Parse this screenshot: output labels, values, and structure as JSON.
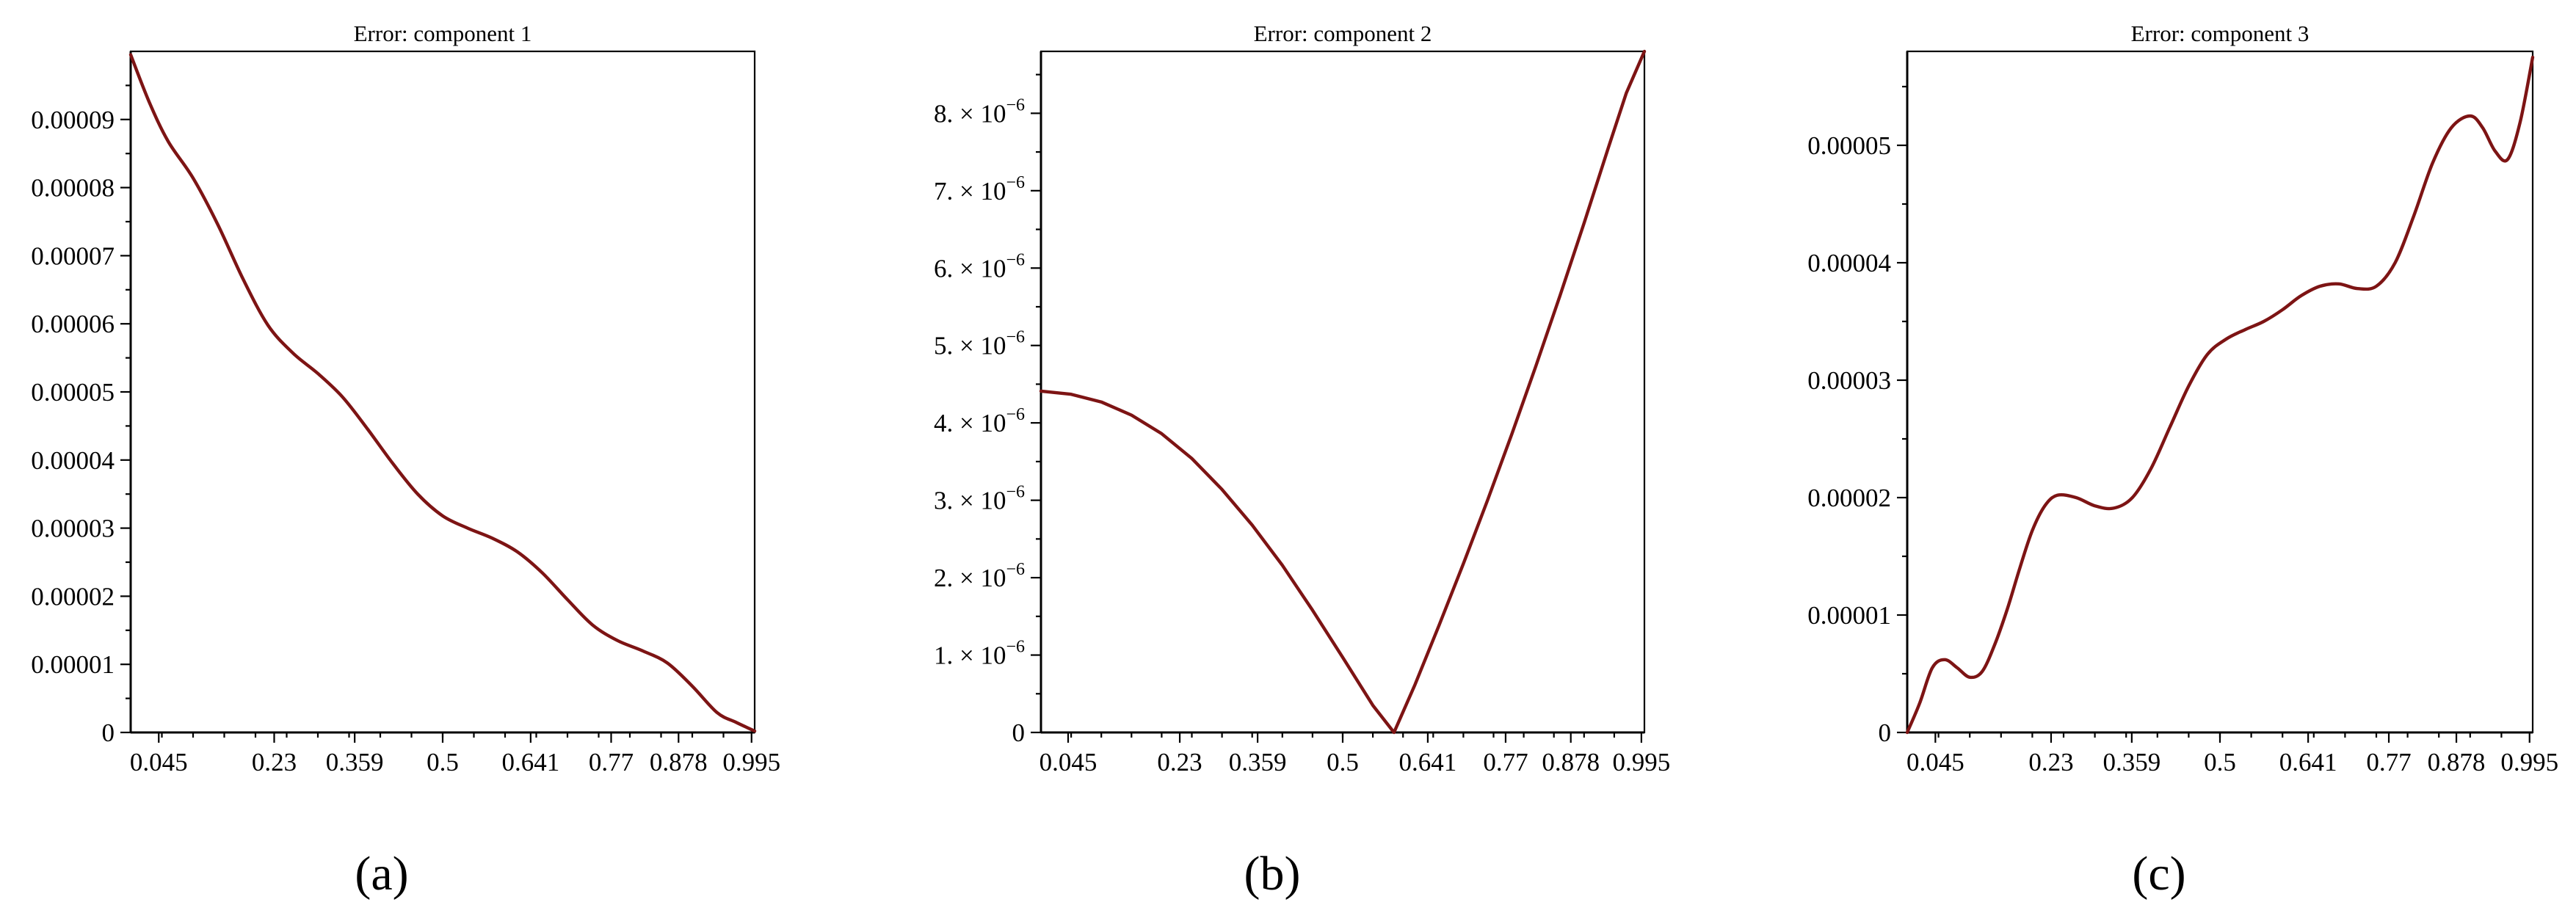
{
  "colors": {
    "curve": "#7d1414",
    "axis": "#000000"
  },
  "chart_data": [
    {
      "type": "line",
      "panel_label": "(a)",
      "title": "Error: component 1",
      "xlabel": "",
      "ylabel": "",
      "xlim": [
        0,
        1
      ],
      "ylim": [
        0,
        0.0001
      ],
      "grid": false,
      "x_ticks": [
        {
          "value": 0.045,
          "label": "0.045"
        },
        {
          "value": 0.23,
          "label": "0.23"
        },
        {
          "value": 0.359,
          "label": "0.359"
        },
        {
          "value": 0.5,
          "label": "0.5"
        },
        {
          "value": 0.641,
          "label": "0.641"
        },
        {
          "value": 0.77,
          "label": "0.77"
        },
        {
          "value": 0.878,
          "label": "0.878"
        },
        {
          "value": 0.995,
          "label": "0.995"
        }
      ],
      "y_ticks": [
        {
          "value": 0,
          "label": "0"
        },
        {
          "value": 1e-05,
          "label": "0.00001"
        },
        {
          "value": 2e-05,
          "label": "0.00002"
        },
        {
          "value": 3e-05,
          "label": "0.00003"
        },
        {
          "value": 4e-05,
          "label": "0.00004"
        },
        {
          "value": 5e-05,
          "label": "0.00005"
        },
        {
          "value": 6e-05,
          "label": "0.00006"
        },
        {
          "value": 7e-05,
          "label": "0.00007"
        },
        {
          "value": 8e-05,
          "label": "0.00008"
        },
        {
          "value": 9e-05,
          "label": "0.00009"
        }
      ],
      "series": [
        {
          "x": [
            0,
            0.03,
            0.06,
            0.1,
            0.14,
            0.18,
            0.22,
            0.26,
            0.3,
            0.34,
            0.38,
            0.42,
            0.46,
            0.5,
            0.54,
            0.58,
            0.62,
            0.66,
            0.7,
            0.74,
            0.78,
            0.82,
            0.86,
            0.9,
            0.94,
            0.97,
            1.0
          ],
          "y": [
            9.95e-05,
            9.25e-05,
            8.68e-05,
            8.14e-05,
            7.45e-05,
            6.66e-05,
            5.98e-05,
            5.57e-05,
            5.27e-05,
            4.92e-05,
            4.45e-05,
            3.95e-05,
            3.5e-05,
            3.18e-05,
            3e-05,
            2.85e-05,
            2.65e-05,
            2.34e-05,
            1.95e-05,
            1.58e-05,
            1.35e-05,
            1.2e-05,
            1.02e-05,
            6.8e-06,
            2.9e-06,
            1.5e-06,
            2e-07
          ]
        }
      ]
    },
    {
      "type": "line",
      "panel_label": "(b)",
      "title": "Error: component 2",
      "xlabel": "",
      "ylabel": "",
      "xlim": [
        0,
        1
      ],
      "ylim": [
        0,
        8.8e-06
      ],
      "grid": false,
      "x_ticks": [
        {
          "value": 0.045,
          "label": "0.045"
        },
        {
          "value": 0.23,
          "label": "0.23"
        },
        {
          "value": 0.359,
          "label": "0.359"
        },
        {
          "value": 0.5,
          "label": "0.5"
        },
        {
          "value": 0.641,
          "label": "0.641"
        },
        {
          "value": 0.77,
          "label": "0.77"
        },
        {
          "value": 0.878,
          "label": "0.878"
        },
        {
          "value": 0.995,
          "label": "0.995"
        }
      ],
      "y_ticks": [
        {
          "value": 0,
          "label": "0",
          "exp": ""
        },
        {
          "value": 1e-06,
          "label": "1. × 10",
          "exp": "−6"
        },
        {
          "value": 2e-06,
          "label": "2. × 10",
          "exp": "−6"
        },
        {
          "value": 3e-06,
          "label": "3. × 10",
          "exp": "−6"
        },
        {
          "value": 4e-06,
          "label": "4. × 10",
          "exp": "−6"
        },
        {
          "value": 5e-06,
          "label": "5. × 10",
          "exp": "−6"
        },
        {
          "value": 6e-06,
          "label": "6. × 10",
          "exp": "−6"
        },
        {
          "value": 7e-06,
          "label": "7. × 10",
          "exp": "−6"
        },
        {
          "value": 8e-06,
          "label": "8. × 10",
          "exp": "−6"
        }
      ],
      "series": [
        {
          "x": [
            0,
            0.05,
            0.1,
            0.15,
            0.2,
            0.25,
            0.3,
            0.35,
            0.4,
            0.45,
            0.5,
            0.55,
            0.585,
            0.62,
            0.66,
            0.7,
            0.74,
            0.78,
            0.82,
            0.86,
            0.9,
            0.94,
            0.97,
            1.0
          ],
          "y": [
            4.41e-06,
            4.37e-06,
            4.27e-06,
            4.1e-06,
            3.86e-06,
            3.54e-06,
            3.14e-06,
            2.68e-06,
            2.16e-06,
            1.58e-06,
            9.7e-07,
            3.5e-07,
            0.0,
            6.2e-07,
            1.39e-06,
            2.18e-06,
            3e-06,
            3.85e-06,
            4.73e-06,
            5.64e-06,
            6.58e-06,
            7.55e-06,
            8.26e-06,
            8.8e-06
          ]
        }
      ]
    },
    {
      "type": "line",
      "panel_label": "(c)",
      "title": "Error: component 3",
      "xlabel": "",
      "ylabel": "",
      "xlim": [
        0,
        1
      ],
      "ylim": [
        0,
        5.8e-05
      ],
      "grid": false,
      "x_ticks": [
        {
          "value": 0.045,
          "label": "0.045"
        },
        {
          "value": 0.23,
          "label": "0.23"
        },
        {
          "value": 0.359,
          "label": "0.359"
        },
        {
          "value": 0.5,
          "label": "0.5"
        },
        {
          "value": 0.641,
          "label": "0.641"
        },
        {
          "value": 0.77,
          "label": "0.77"
        },
        {
          "value": 0.878,
          "label": "0.878"
        },
        {
          "value": 0.995,
          "label": "0.995"
        }
      ],
      "y_ticks": [
        {
          "value": 0,
          "label": "0"
        },
        {
          "value": 1e-05,
          "label": "0.00001"
        },
        {
          "value": 2e-05,
          "label": "0.00002"
        },
        {
          "value": 3e-05,
          "label": "0.00003"
        },
        {
          "value": 4e-05,
          "label": "0.00004"
        },
        {
          "value": 5e-05,
          "label": "0.00005"
        }
      ],
      "series": [
        {
          "x": [
            0,
            0.02,
            0.04,
            0.06,
            0.08,
            0.1,
            0.12,
            0.14,
            0.16,
            0.18,
            0.2,
            0.22,
            0.24,
            0.27,
            0.3,
            0.33,
            0.36,
            0.39,
            0.42,
            0.45,
            0.48,
            0.51,
            0.54,
            0.57,
            0.6,
            0.63,
            0.66,
            0.69,
            0.72,
            0.75,
            0.78,
            0.81,
            0.84,
            0.87,
            0.9,
            0.92,
            0.94,
            0.96,
            0.98,
            1.0
          ],
          "y": [
            0,
            2.5e-06,
            5.5e-06,
            6.2e-06,
            5.5e-06,
            4.7e-06,
            5.2e-06,
            7.5e-06,
            1.05e-05,
            1.4e-05,
            1.72e-05,
            1.93e-05,
            2.02e-05,
            2e-05,
            1.93e-05,
            1.91e-05,
            2e-05,
            2.25e-05,
            2.6e-05,
            2.95e-05,
            3.22e-05,
            3.35e-05,
            3.43e-05,
            3.5e-05,
            3.6e-05,
            3.72e-05,
            3.8e-05,
            3.82e-05,
            3.78e-05,
            3.8e-05,
            4e-05,
            4.4e-05,
            4.85e-05,
            5.15e-05,
            5.25e-05,
            5.15e-05,
            4.95e-05,
            4.88e-05,
            5.2e-05,
            5.75e-05
          ]
        }
      ]
    }
  ]
}
